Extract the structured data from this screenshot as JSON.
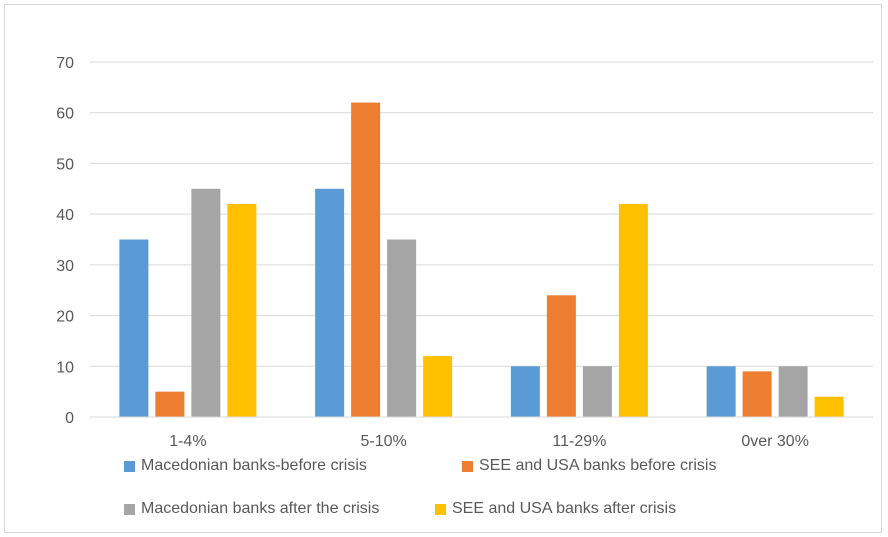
{
  "chart_data": {
    "type": "bar",
    "categories": [
      "1-4%",
      "5-10%",
      "11-29%",
      "0ver 30%"
    ],
    "series": [
      {
        "name": "Macedonian banks-before crisis",
        "values": [
          35,
          45,
          10,
          10
        ],
        "color": "#5b9bd5"
      },
      {
        "name": "SEE and USA banks before crisis",
        "values": [
          5,
          62,
          24,
          9
        ],
        "color": "#ed7d31"
      },
      {
        "name": "Macedonian banks after the crisis",
        "values": [
          45,
          35,
          10,
          10
        ],
        "color": "#a5a5a5"
      },
      {
        "name": "SEE and USA banks after crisis",
        "values": [
          42,
          12,
          42,
          4
        ],
        "color": "#ffc000"
      }
    ],
    "yticks": [
      0,
      10,
      20,
      30,
      40,
      50,
      60,
      70
    ],
    "ylim": [
      0,
      70
    ],
    "grid": true,
    "legend_position": "bottom",
    "title": "",
    "xlabel": "",
    "ylabel": ""
  }
}
